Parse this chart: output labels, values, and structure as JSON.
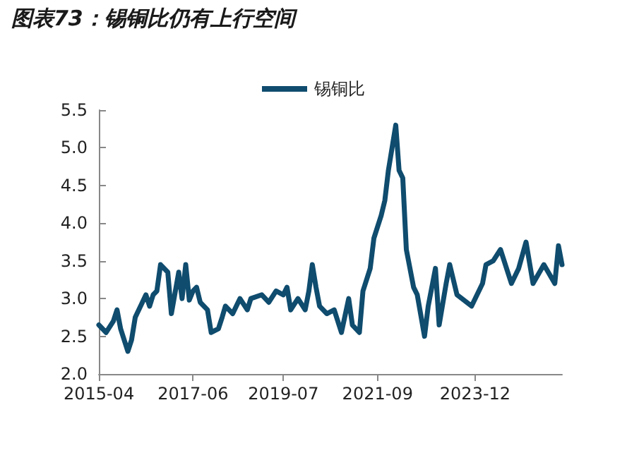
{
  "chart_data": {
    "type": "line",
    "title": "图表73：锡铜比仍有上行空间",
    "x": [
      "2015-04",
      "2015-06",
      "2015-08",
      "2015-09",
      "2015-10",
      "2015-12",
      "2016-01",
      "2016-02",
      "2016-04",
      "2016-05",
      "2016-06",
      "2016-07",
      "2016-08",
      "2016-09",
      "2016-11",
      "2016-12",
      "2017-02",
      "2017-03",
      "2017-04",
      "2017-05",
      "2017-06",
      "2017-07",
      "2017-08",
      "2017-10",
      "2017-11",
      "2018-01",
      "2018-02",
      "2018-03",
      "2018-05",
      "2018-07",
      "2018-09",
      "2018-10",
      "2019-01",
      "2019-03",
      "2019-05",
      "2019-07",
      "2019-08",
      "2019-09",
      "2019-11",
      "2020-01",
      "2020-02",
      "2020-03",
      "2020-04",
      "2020-05",
      "2020-07",
      "2020-09",
      "2020-11",
      "2021-01",
      "2021-02",
      "2021-04",
      "2021-05",
      "2021-07",
      "2021-08",
      "2021-10",
      "2021-11",
      "2021-12",
      "2022-02",
      "2022-03",
      "2022-04",
      "2022-05",
      "2022-07",
      "2022-08",
      "2022-10",
      "2022-11",
      "2023-01",
      "2023-02",
      "2023-04",
      "2023-05",
      "2023-07",
      "2023-11",
      "2024-02",
      "2024-03",
      "2024-05",
      "2024-07",
      "2024-10",
      "2024-12",
      "2025-02",
      "2025-04",
      "2025-07",
      "2025-10",
      "2025-11",
      "2025-12"
    ],
    "series": [
      {
        "name": "锡铜比",
        "color": "#0f4c6e",
        "values": [
          2.65,
          2.55,
          2.7,
          2.85,
          2.6,
          2.3,
          2.45,
          2.75,
          2.95,
          3.05,
          2.9,
          3.05,
          3.1,
          3.45,
          3.35,
          2.8,
          3.35,
          3.0,
          3.45,
          2.98,
          3.1,
          3.15,
          2.95,
          2.85,
          2.55,
          2.6,
          2.75,
          2.9,
          2.8,
          3.0,
          2.85,
          3.0,
          3.05,
          2.95,
          3.1,
          3.05,
          3.15,
          2.85,
          3.0,
          2.85,
          3.1,
          3.45,
          3.15,
          2.9,
          2.8,
          2.85,
          2.55,
          3.0,
          2.65,
          2.55,
          3.1,
          3.4,
          3.8,
          4.1,
          4.3,
          4.7,
          5.3,
          4.7,
          4.6,
          3.65,
          3.15,
          3.05,
          2.5,
          2.9,
          3.4,
          2.65,
          3.2,
          3.45,
          3.05,
          2.9,
          3.2,
          3.45,
          3.5,
          3.65,
          3.2,
          3.4,
          3.75,
          3.2,
          3.45,
          3.2,
          3.7,
          3.45
        ]
      }
    ],
    "xlim": [
      "2015-04",
      "2025-12"
    ],
    "xticks": [
      "2015-04",
      "2017-06",
      "2019-07",
      "2021-09",
      "2023-12"
    ],
    "ylim": [
      2,
      5.5
    ],
    "yticks": [
      {
        "value": 2,
        "label": "2.0"
      },
      {
        "value": 2.5,
        "label": "2.5"
      },
      {
        "value": 3,
        "label": "3.0"
      },
      {
        "value": 3.5,
        "label": "3.5"
      },
      {
        "value": 4,
        "label": "4.0"
      },
      {
        "value": 4.5,
        "label": "4.5"
      },
      {
        "value": 5,
        "label": "5.0"
      },
      {
        "value": 5.5,
        "label": "5.5"
      }
    ],
    "grid": false,
    "legend": "top",
    "marker": "none",
    "line_style": "solid"
  }
}
